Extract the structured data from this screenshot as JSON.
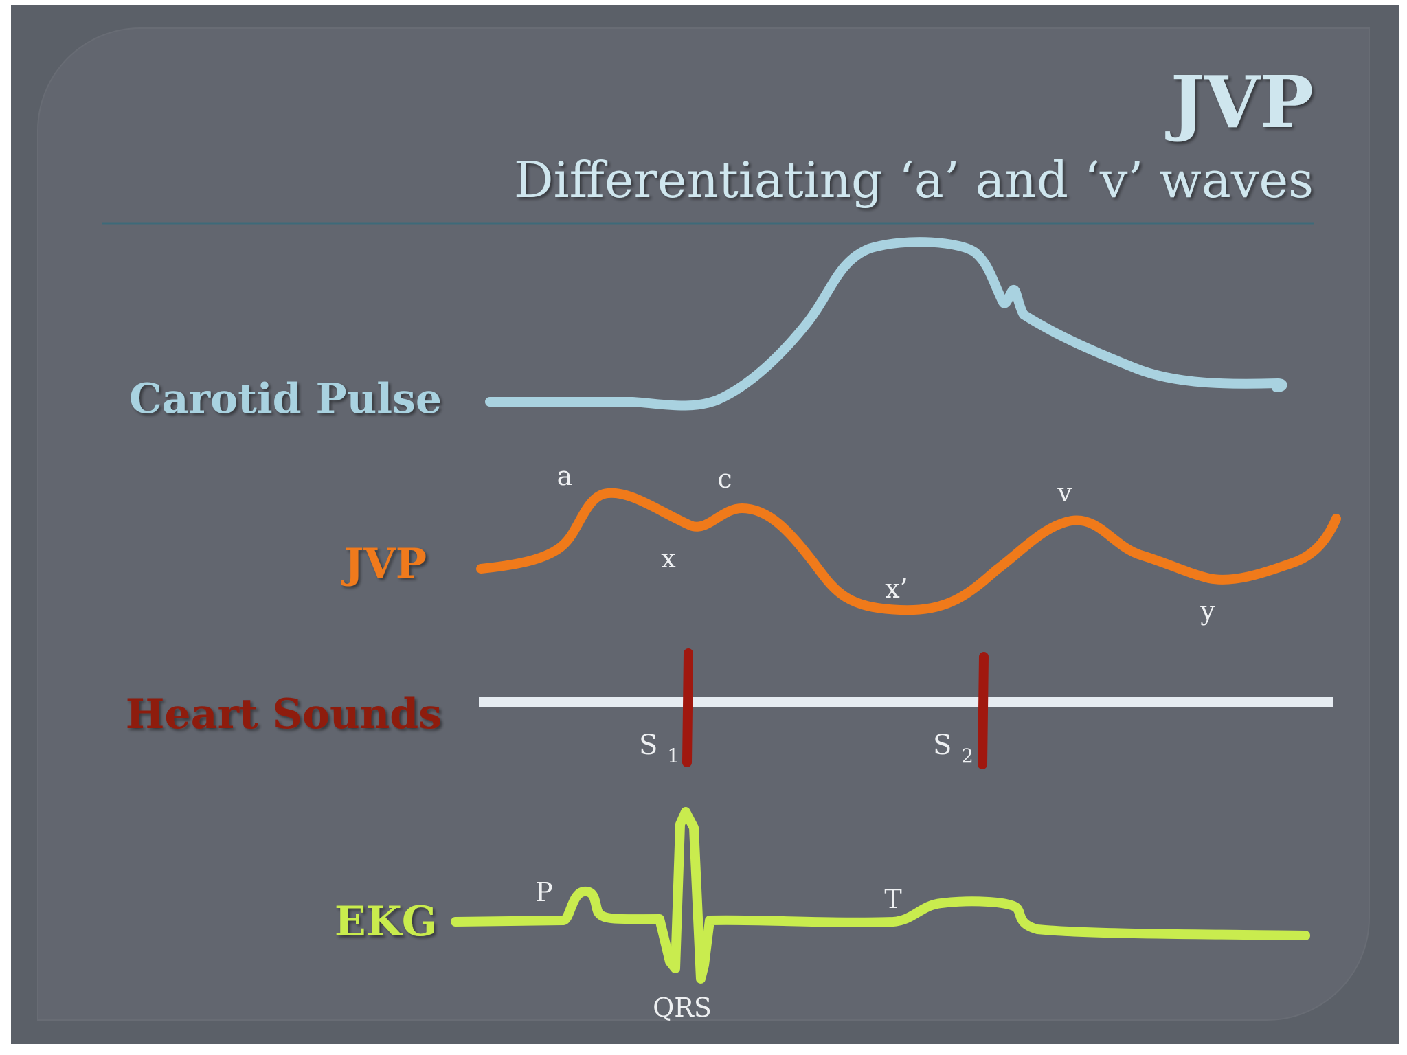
{
  "slide": {
    "title": "JVP",
    "subtitle": "Differentiating ‘a’ and ‘v’ waves"
  },
  "rows": {
    "carotid": {
      "label": "Carotid Pulse"
    },
    "jvp": {
      "label": "JVP"
    },
    "heart_sounds": {
      "label": "Heart Sounds"
    },
    "ekg": {
      "label": "EKG"
    }
  },
  "jvp_waves": {
    "a": "a",
    "c": "c",
    "x": "x",
    "x_prime": "x’",
    "v": "v",
    "y": "y"
  },
  "heart_sound_markers": {
    "s1_letter": "S",
    "s1_sub": "1",
    "s2_letter": "S",
    "s2_sub": "2"
  },
  "ekg_waves": {
    "p": "P",
    "qrs": "QRS",
    "t": "T"
  },
  "colors": {
    "carotid": "#a9d2e0",
    "jvp": "#f07a1a",
    "heart_sounds_label": "#8e1c10",
    "heart_sounds_line": "#e6ecf2",
    "heart_sounds_marker": "#a0180f",
    "ekg": "#c9ec4e",
    "title": "#cfe6ee",
    "divider": "#3d6a79"
  }
}
